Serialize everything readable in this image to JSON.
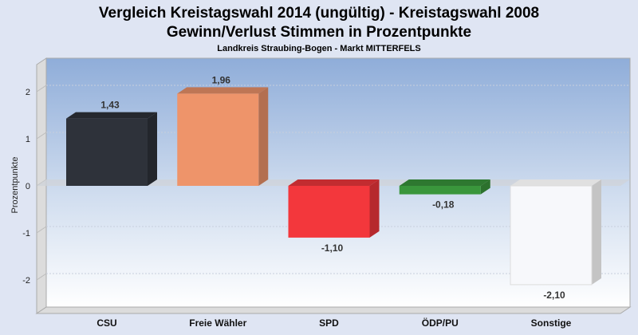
{
  "chart_data": {
    "type": "bar",
    "title": "Vergleich Kreistagswahl 2014 (ungültig) - Kreistagswahl 2008",
    "subtitle": "Gewinn/Verlust Stimmen in Prozentpunkte",
    "subtitle2": "Landkreis Straubing-Bogen - Markt MITTERFELS",
    "xlabel": "",
    "ylabel": "Prozentpunkte",
    "ylim": [
      -2.6,
      2.6
    ],
    "yticks": [
      2,
      1,
      0,
      -1,
      -2
    ],
    "categories": [
      "CSU",
      "Freie Wähler",
      "SPD",
      "ÖDP/PU",
      "Sonstige"
    ],
    "values": [
      1.43,
      1.96,
      -1.1,
      -0.18,
      -2.1
    ],
    "value_labels": [
      "1,43",
      "1,96",
      "-1,10",
      "-0,18",
      "-2,10"
    ],
    "colors": [
      "#2e323a",
      "#ee946a",
      "#f3373c",
      "#3a963c",
      "#f7f8fb"
    ],
    "grid": true
  }
}
